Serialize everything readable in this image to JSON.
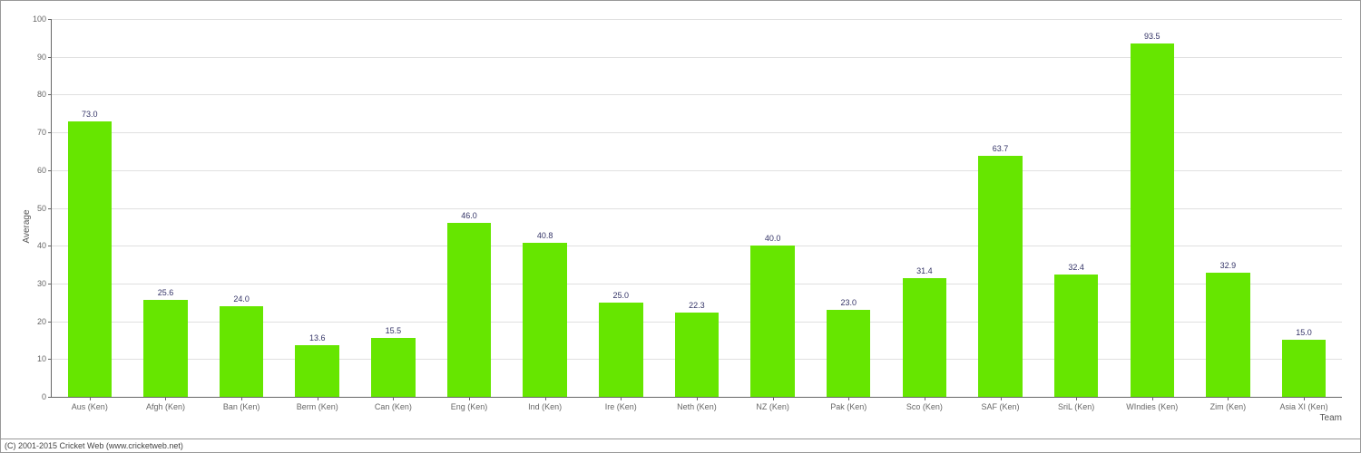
{
  "chart": {
    "type": "bar",
    "ylabel": "Average",
    "xlabel": "Team",
    "ylim": [
      0,
      100
    ],
    "ytick_step": 10,
    "bar_color": "#66e600",
    "grid_color": "#e0e0e0",
    "axis_color": "#666666",
    "value_label_color": "#333366",
    "tick_label_color": "#666666",
    "tick_fontsize": 9,
    "value_fontsize": 9,
    "axis_title_fontsize": 10,
    "background_color": "#ffffff",
    "border_color": "#999999",
    "bar_width_ratio": 0.58,
    "categories": [
      "Aus (Ken)",
      "Afgh (Ken)",
      "Ban (Ken)",
      "Berm (Ken)",
      "Can (Ken)",
      "Eng (Ken)",
      "Ind (Ken)",
      "Ire (Ken)",
      "Neth (Ken)",
      "NZ (Ken)",
      "Pak (Ken)",
      "Sco (Ken)",
      "SAF (Ken)",
      "SriL (Ken)",
      "WIndies (Ken)",
      "Zim (Ken)",
      "Asia XI (Ken)"
    ],
    "values": [
      73.0,
      25.6,
      24.0,
      13.6,
      15.5,
      46.0,
      40.8,
      25.0,
      22.3,
      40.0,
      23.0,
      31.4,
      63.7,
      32.4,
      93.5,
      32.9,
      15.0
    ],
    "value_labels": [
      "73.0",
      "25.6",
      "24.0",
      "13.6",
      "15.5",
      "46.0",
      "40.8",
      "25.0",
      "22.3",
      "40.0",
      "23.0",
      "31.4",
      "63.7",
      "32.4",
      "93.5",
      "32.9",
      "15.0"
    ]
  },
  "footer": {
    "credit": "(C) 2001-2015 Cricket Web (www.cricketweb.net)"
  }
}
